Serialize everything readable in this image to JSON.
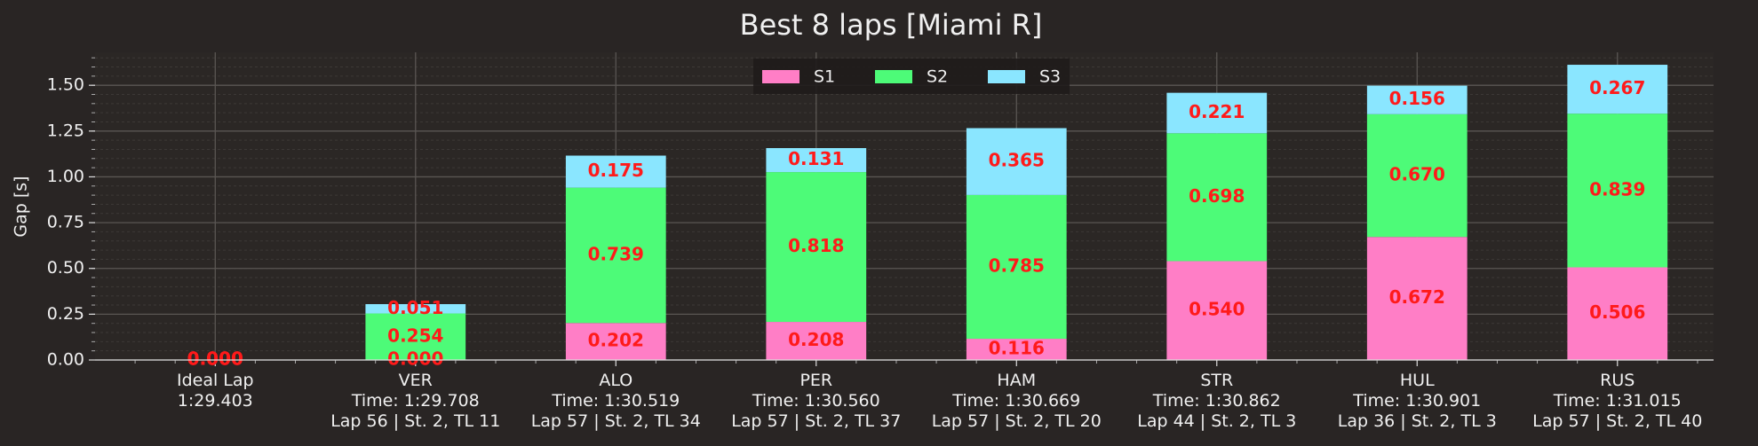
{
  "chart_data": {
    "type": "stacked_bar",
    "title": "Best 8 laps [Miami R]",
    "y_label": "Gap [s]",
    "categories": [
      "Ideal Lap\n1:29.403",
      "VER\nTime: 1:29.708\nLap 56 | St. 2, TL 11",
      "ALO\nTime: 1:30.519\nLap 57 | St. 2, TL 34",
      "PER\nTime: 1:30.560\nLap 57 | St. 2, TL 37",
      "HAM\nTime: 1:30.669\nLap 57 | St. 2, TL 20",
      "STR\nTime: 1:30.862\nLap 44 | St. 2, TL 3",
      "HUL\nTime: 1:30.901\nLap 36 | St. 2, TL 3",
      "RUS\nTime: 1:31.015\nLap 57 | St. 2, TL 40"
    ],
    "series": [
      {
        "name": "S1",
        "color": "#ff7ec6",
        "values": [
          0,
          0,
          0.202,
          0.208,
          0.116,
          0.54,
          0.672,
          0.506
        ],
        "value_labels": [
          "0.000",
          "0.000",
          "0.202",
          "0.208",
          "0.116",
          "0.540",
          "0.672",
          "0.506"
        ]
      },
      {
        "name": "S2",
        "color": "#4dfb78",
        "values": [
          0,
          0.254,
          0.739,
          0.818,
          0.785,
          0.698,
          0.67,
          0.839
        ],
        "value_labels": [
          "0.000",
          "0.254",
          "0.739",
          "0.818",
          "0.785",
          "0.698",
          "0.670",
          "0.839"
        ]
      },
      {
        "name": "S3",
        "color": "#8ae6ff",
        "values": [
          0,
          0.051,
          0.175,
          0.131,
          0.365,
          0.221,
          0.156,
          0.267
        ],
        "value_labels": [
          "0.000",
          "0.051",
          "0.175",
          "0.131",
          "0.365",
          "0.221",
          "0.156",
          "0.267"
        ]
      }
    ],
    "ylim": [
      0,
      1.68
    ],
    "yticks": [
      {
        "value": 0,
        "label": "0.00"
      },
      {
        "value": 0.25,
        "label": "0.25"
      },
      {
        "value": 0.5,
        "label": "0.50"
      },
      {
        "value": 0.75,
        "label": "0.75"
      },
      {
        "value": 1,
        "label": "1.00"
      },
      {
        "value": 1.25,
        "label": "1.25"
      },
      {
        "value": 1.5,
        "label": "1.50"
      }
    ],
    "grid": true,
    "minor_grid": true,
    "legend": "upper center",
    "value_label_color": "#ff1a1a"
  }
}
